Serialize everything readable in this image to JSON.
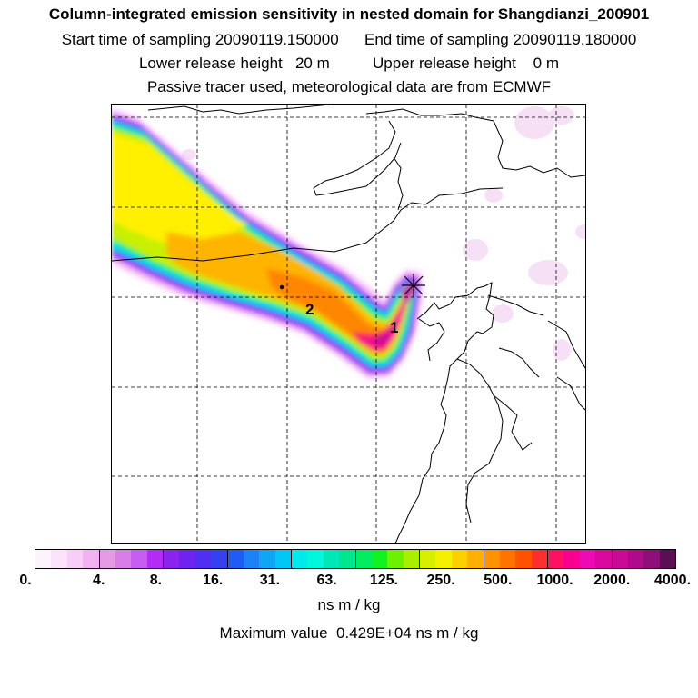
{
  "header": {
    "title": "Column-integrated emission sensitivity in nested domain for Shangdianzi_200901",
    "line2": "Start time of sampling 20090119.150000      End time of sampling 20090119.180000",
    "line3": "Lower release height   20 m          Upper release height    0 m",
    "line4": "Passive tracer used, meteorological data are from ECMWF"
  },
  "map": {
    "labels": [
      "1",
      "2"
    ]
  },
  "colorbar": {
    "colors": [
      "#fdf3fd",
      "#fbe3fb",
      "#f8cdf8",
      "#f3b0f3",
      "#e49ae4",
      "#d97ee9",
      "#c75cf0",
      "#b42bf5",
      "#8c22ee",
      "#6e24f0",
      "#4f2ff2",
      "#3540f2",
      "#1f5cf6",
      "#1e82f6",
      "#10a6f6",
      "#00c8f6",
      "#00e8f0",
      "#00f7dc",
      "#00e8b8",
      "#00e68e",
      "#04ec60",
      "#10f220",
      "#6cf200",
      "#a8f000",
      "#d8f000",
      "#f4f000",
      "#ffd000",
      "#ffb000",
      "#ff9200",
      "#ff7300",
      "#ff5200",
      "#ff2e2e",
      "#ff1060",
      "#f80090",
      "#ee0ab4",
      "#d8089e",
      "#c80a96",
      "#b00a8c",
      "#8e0e7a",
      "#5c0e52"
    ],
    "ticks": [
      "0.",
      "4.",
      "8.",
      "16.",
      "31.",
      "63.",
      "125.",
      "250.",
      "500.",
      "1000.",
      "2000.",
      "4000."
    ],
    "unit": "ns m / kg",
    "max_text": "Maximum value  0.429E+04 ns m / kg"
  }
}
